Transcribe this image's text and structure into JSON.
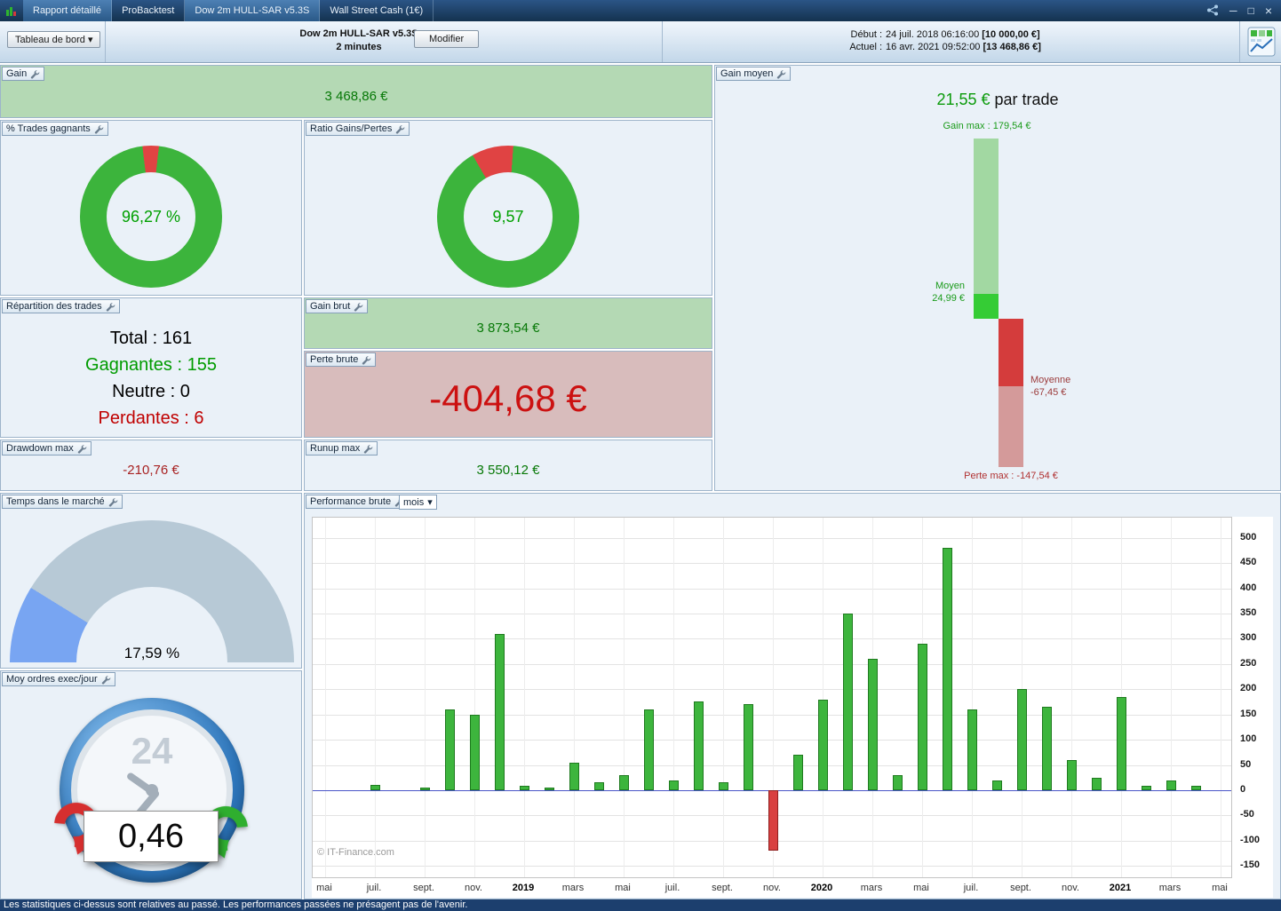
{
  "tabbar": {
    "tabs": [
      {
        "label": "Rapport détaillé",
        "active": true
      },
      {
        "label": "ProBacktest",
        "active": false
      },
      {
        "label": "Dow 2m HULL-SAR v5.3S",
        "active": true
      },
      {
        "label": "Wall Street Cash (1€)",
        "active": false
      }
    ]
  },
  "header": {
    "dashboard_select": "Tableau de bord",
    "title": "Dow 2m HULL-SAR v5.3S",
    "subtitle": "2 minutes",
    "modify_button": "Modifier",
    "start_label": "Début :",
    "start_value": "24 juil. 2018 06:16:00",
    "start_amount": "[10 000,00 €]",
    "current_label": "Actuel :",
    "current_value": "16 avr. 2021 09:52:00",
    "current_amount": "[13 468,86 €]"
  },
  "panels": {
    "gain": {
      "label": "Gain",
      "value": "3 468,86 €"
    },
    "gain_moyen": {
      "label": "Gain moyen",
      "value": "21,55 €",
      "suffix": " par trade",
      "gain_max_label": "Gain max : 179,54 €",
      "moyen_label": "Moyen",
      "moyen_value": "24,99 €",
      "moyenne_label": "Moyenne",
      "moyenne_value": "-67,45 €",
      "perte_max_label": "Perte max : -147,54 €",
      "values": {
        "gain_max": 179.54,
        "moyen": 24.99,
        "moyenne": -67.45,
        "perte_max": -147.54
      }
    },
    "trades_gagnants": {
      "label": "% Trades gagnants",
      "value": "96,27 %",
      "percent": 96.27
    },
    "ratio": {
      "label": "Ratio Gains/Pertes",
      "value": "9,57",
      "ratio": 9.57,
      "loss_share_pct": 9.5
    },
    "repartition": {
      "label": "Répartition des trades",
      "rows": [
        {
          "name": "Total",
          "value": "161",
          "color": "black"
        },
        {
          "name": "Gagnantes",
          "value": "155",
          "color": "green"
        },
        {
          "name": "Neutre",
          "value": "0",
          "color": "black"
        },
        {
          "name": "Perdantes",
          "value": "6",
          "color": "red"
        }
      ]
    },
    "gain_brut": {
      "label": "Gain brut",
      "value": "3 873,54 €"
    },
    "perte_brute": {
      "label": "Perte brute",
      "value": "-404,68 €"
    },
    "drawdown": {
      "label": "Drawdown max",
      "value": "-210,76 €"
    },
    "runup": {
      "label": "Runup max",
      "value": "3 550,12 €"
    },
    "temps_marche": {
      "label": "Temps dans le marché",
      "value": "17,59 %",
      "percent": 17.59
    },
    "ordres_jour": {
      "label": "Moy ordres exec/jour",
      "value": "0,46",
      "clock_text": "24"
    },
    "performance": {
      "label": "Performance brute",
      "period_select": "mois"
    }
  },
  "chart_data": {
    "type": "bar",
    "title": "Performance brute par mois",
    "x": [
      "mai 18",
      "juin 18",
      "juil. 18",
      "août 18",
      "sept. 18",
      "oct. 18",
      "nov. 18",
      "déc. 18",
      "janv. 19",
      "févr. 19",
      "mars 19",
      "avr. 19",
      "mai 19",
      "juin 19",
      "juil. 19",
      "août 19",
      "sept. 19",
      "oct. 19",
      "nov. 19",
      "déc. 19",
      "janv. 20",
      "févr. 20",
      "mars 20",
      "avr. 20",
      "mai 20",
      "juin 20",
      "juil. 20",
      "août 20",
      "sept. 20",
      "oct. 20",
      "nov. 20",
      "déc. 20",
      "janv. 21",
      "févr. 21",
      "mars 21",
      "avr. 21",
      "mai 21"
    ],
    "values": [
      0,
      0,
      10,
      0,
      5,
      160,
      150,
      310,
      8,
      5,
      55,
      15,
      30,
      160,
      20,
      175,
      15,
      170,
      -120,
      70,
      180,
      350,
      260,
      30,
      290,
      480,
      160,
      20,
      200,
      165,
      60,
      25,
      185,
      8,
      20,
      8,
      0
    ],
    "x_tick_labels": [
      "mai",
      "juil.",
      "sept.",
      "nov.",
      "2019",
      "mars",
      "mai",
      "juil.",
      "sept.",
      "nov.",
      "2020",
      "mars",
      "mai",
      "juil.",
      "sept.",
      "nov.",
      "2021",
      "mars",
      "mai"
    ],
    "ylim": [
      -150,
      500
    ],
    "ytick_step": 50,
    "axis_range": [
      -176,
      540
    ],
    "grid": true,
    "watermark": "© IT-Finance.com",
    "colors": {
      "positive": "#3db53d",
      "negative": "#d94040",
      "zero_line": "#4a55c8"
    }
  },
  "footer": {
    "text": "Les statistiques ci-dessus sont relatives au passé. Les performances passées ne présagent pas de l'avenir."
  }
}
